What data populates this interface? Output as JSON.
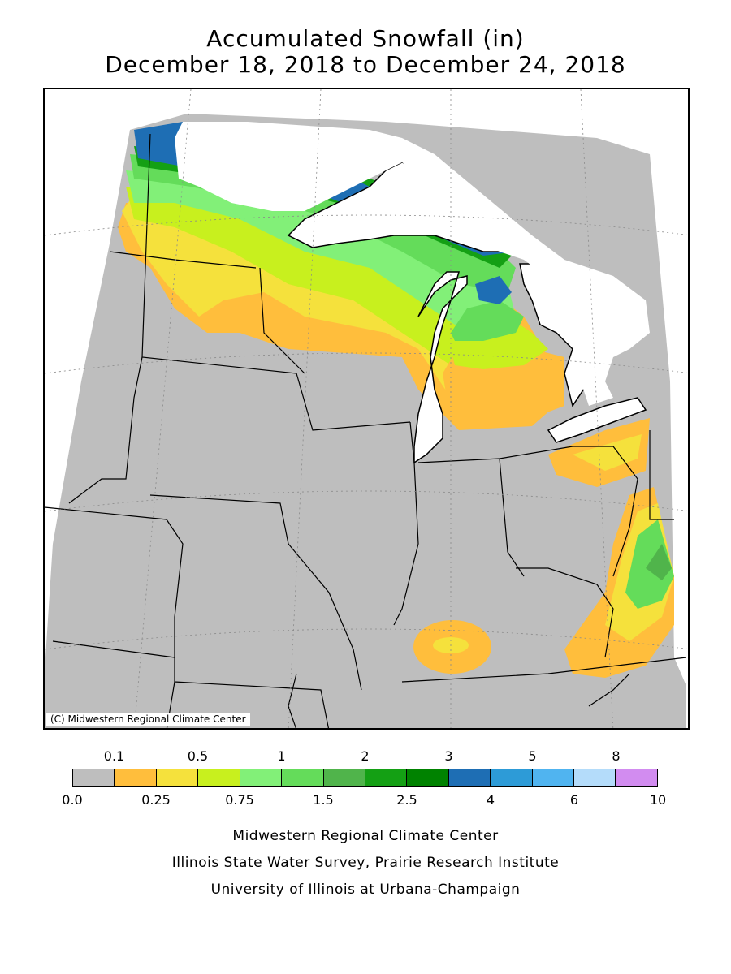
{
  "title": {
    "line1": "Accumulated Snowfall (in)",
    "line2": "December 18, 2018 to December 24, 2018"
  },
  "map": {
    "copyright": "(C) Midwestern Regional Climate Center"
  },
  "legend": {
    "upper_ticks": [
      "0.1",
      "0.5",
      "1",
      "2",
      "3",
      "5",
      "8"
    ],
    "lower_ticks": [
      "0.0",
      "0.25",
      "0.75",
      "1.5",
      "2.5",
      "4",
      "6",
      "10"
    ],
    "colors": [
      "#bebebe",
      "#ffbe3c",
      "#f5e13c",
      "#c8f01e",
      "#82f078",
      "#64dc5a",
      "#50b44b",
      "#14a014",
      "#008200",
      "#1e6eb4",
      "#2d9bd7",
      "#50b4f0",
      "#b4dcfa",
      "#d28cf0"
    ]
  },
  "credits": {
    "line1": "Midwestern Regional Climate Center",
    "line2": "Illinois State Water Survey, Prairie Research Institute",
    "line3": "University of Illinois at Urbana-Champaign"
  }
}
